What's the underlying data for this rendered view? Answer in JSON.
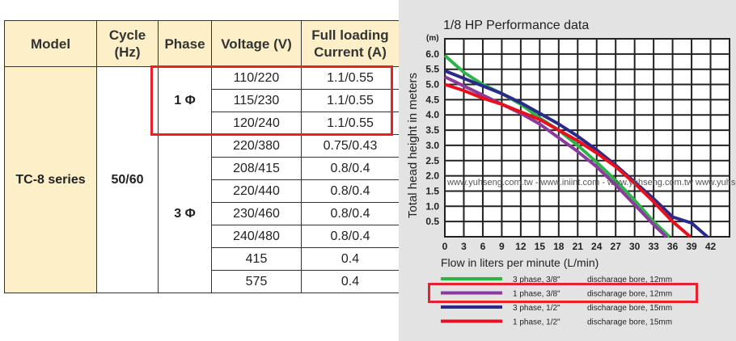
{
  "table": {
    "headers": {
      "model": "Model",
      "cycle": "Cycle (Hz)",
      "phase": "Phase",
      "voltage": "Voltage (V)",
      "current": "Full loading Current (A)"
    },
    "model": "TC-8 series",
    "cycle": "50/60",
    "phase1": "1 Φ",
    "phase3": "3 Φ",
    "rows": [
      {
        "voltage": "110/220",
        "current": "1.1/0.55"
      },
      {
        "voltage": "115/230",
        "current": "1.1/0.55"
      },
      {
        "voltage": "120/240",
        "current": "1.1/0.55"
      },
      {
        "voltage": "220/380",
        "current": "0.75/0.43"
      },
      {
        "voltage": "208/415",
        "current": "0.8/0.4"
      },
      {
        "voltage": "220/440",
        "current": "0.8/0.4"
      },
      {
        "voltage": "230/460",
        "current": "0.8/0.4"
      },
      {
        "voltage": "240/480",
        "current": "0.8/0.4"
      },
      {
        "voltage": "415",
        "current": "0.4"
      },
      {
        "voltage": "575",
        "current": "0.4"
      }
    ],
    "highlight_color": "#e8212b"
  },
  "chart_data": {
    "type": "line",
    "title": "1/8 HP Performance data",
    "xlabel": "Flow in liters per minute (L/min)",
    "ylabel": "Total head height in meters",
    "yunit": "(m)",
    "xlim": [
      0,
      45
    ],
    "ylim": [
      0,
      6.5
    ],
    "xticks": [
      0,
      3,
      6,
      9,
      12,
      15,
      18,
      21,
      24,
      27,
      30,
      33,
      36,
      39,
      42
    ],
    "yticks": [
      0.5,
      1.0,
      1.5,
      2.0,
      2.5,
      3.0,
      3.5,
      4.0,
      4.5,
      5.0,
      5.5,
      6.0
    ],
    "grid": true,
    "watermark": "www.yuhseng.com.tw - www.iniint.com - www.yuhseng.com.tw www.yuhse",
    "series": [
      {
        "name": "3 phase, 3/8\"",
        "desc": "discharage bore, 12mm",
        "color": "#2db34a",
        "x": [
          0,
          3,
          6,
          9,
          12,
          15,
          18,
          21,
          24,
          27,
          30,
          33,
          35.5
        ],
        "y": [
          5.95,
          5.4,
          5.0,
          4.7,
          4.35,
          3.9,
          3.5,
          3.0,
          2.45,
          1.85,
          1.2,
          0.5,
          0
        ]
      },
      {
        "name": "1 phase, 3/8\"",
        "desc": "discharage bore, 12mm",
        "color": "#8a3c9c",
        "highlighted": true,
        "x": [
          0,
          3,
          6,
          9,
          12,
          15,
          18,
          21,
          24,
          27,
          30,
          33,
          35
        ],
        "y": [
          5.25,
          4.95,
          4.65,
          4.35,
          4.05,
          3.7,
          3.25,
          2.8,
          2.3,
          1.7,
          1.05,
          0.4,
          0
        ]
      },
      {
        "name": "3 phase, 1/2\"",
        "desc": "discharage bore, 15mm",
        "color": "#2a2a8a",
        "x": [
          0,
          3,
          6,
          9,
          12,
          15,
          18,
          21,
          24,
          27,
          30,
          33,
          36,
          39,
          41.5
        ],
        "y": [
          5.45,
          5.2,
          4.95,
          4.7,
          4.4,
          4.05,
          3.7,
          3.3,
          2.85,
          2.35,
          1.8,
          1.25,
          0.65,
          0.45,
          0
        ]
      },
      {
        "name": "1 phase, 1/2\"",
        "desc": "discharage bore, 15mm",
        "color": "#e8101e",
        "x": [
          0,
          3,
          6,
          9,
          12,
          15,
          18,
          21,
          24,
          27,
          30,
          33,
          36,
          38.8
        ],
        "y": [
          5.0,
          4.8,
          4.55,
          4.35,
          4.1,
          3.85,
          3.5,
          3.15,
          2.75,
          2.3,
          1.75,
          1.15,
          0.5,
          0
        ]
      }
    ]
  }
}
